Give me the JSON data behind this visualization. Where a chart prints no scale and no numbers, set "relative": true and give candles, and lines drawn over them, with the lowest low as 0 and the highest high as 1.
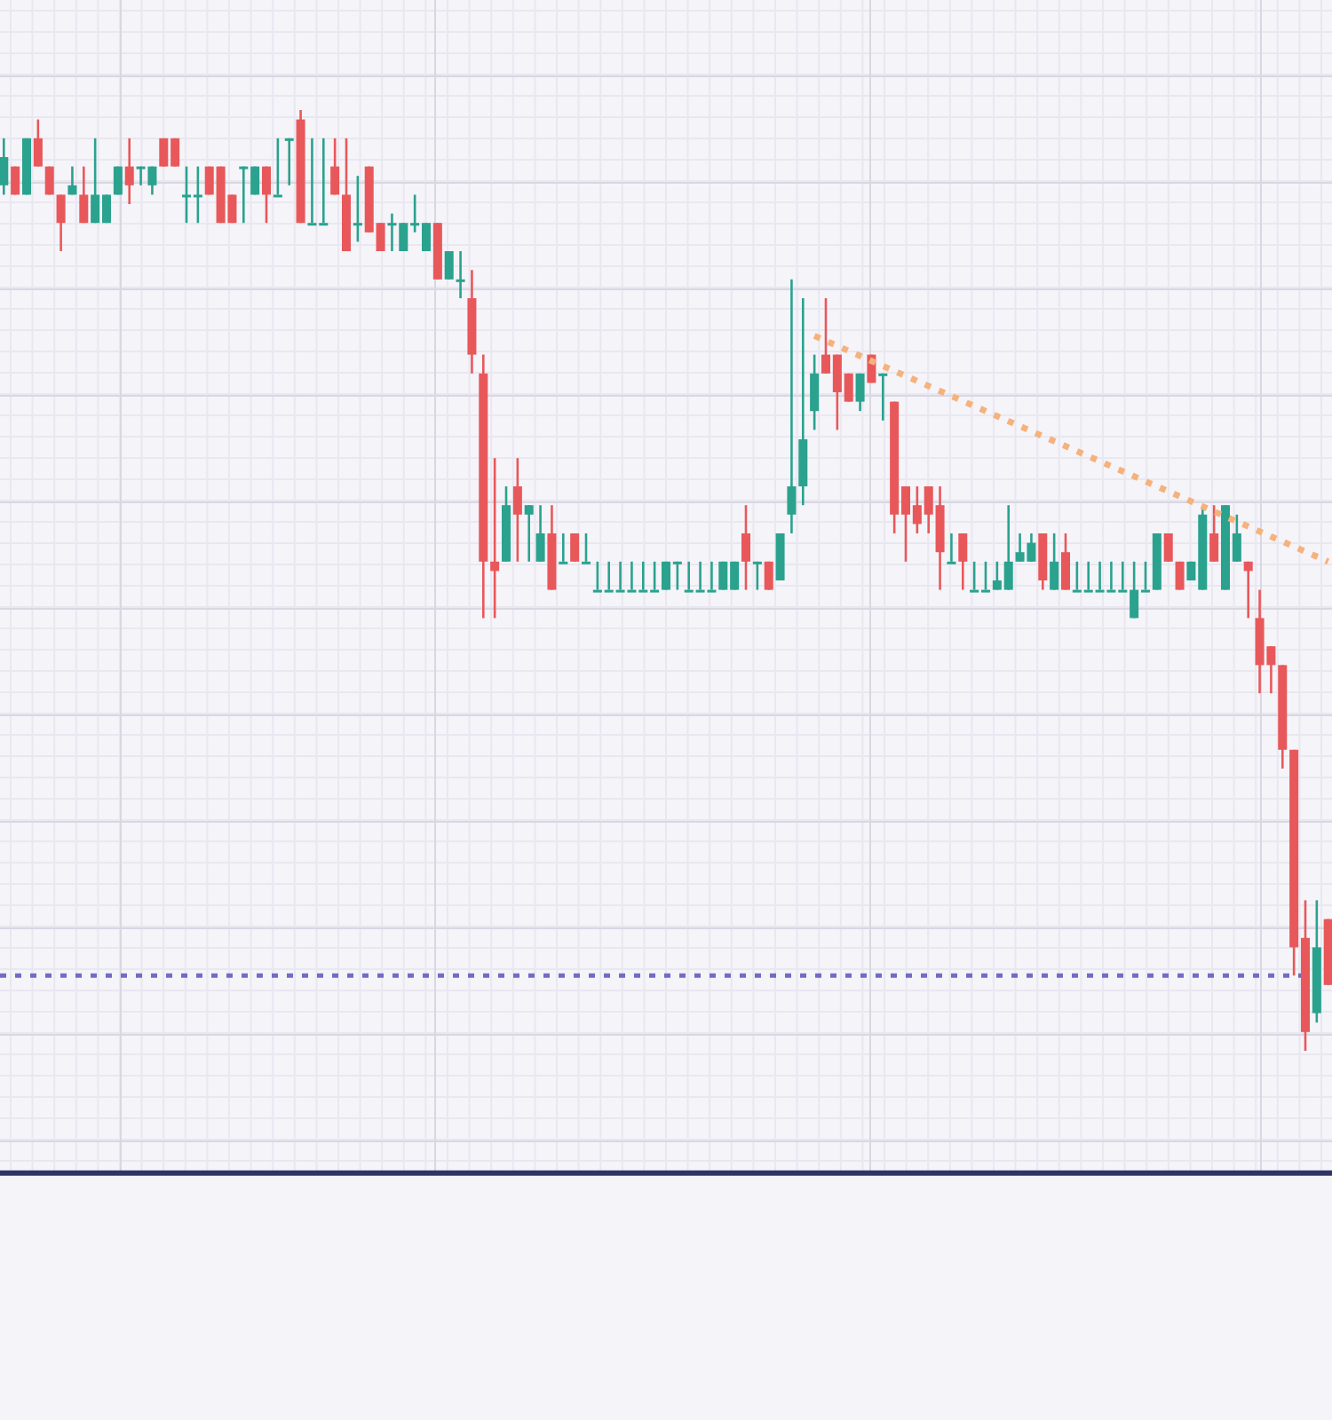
{
  "chart_data": {
    "type": "candlestick",
    "relative": true,
    "grid": true,
    "categories": [
      null,
      null,
      null,
      null,
      null,
      null,
      null,
      null,
      null,
      null,
      null,
      null,
      null,
      null,
      null,
      null,
      null,
      null,
      null,
      null,
      null,
      null,
      null,
      null,
      null,
      null,
      null,
      null,
      null,
      null,
      null,
      null,
      null,
      null,
      null,
      null,
      null,
      null,
      null,
      null,
      null,
      null,
      null,
      null,
      null,
      null,
      null,
      null,
      null,
      null,
      null,
      null,
      null,
      null,
      null,
      null,
      null,
      null,
      null,
      null,
      null,
      null,
      null,
      null,
      null,
      null,
      null,
      null,
      null,
      null,
      null,
      null,
      null,
      null,
      null,
      null,
      null,
      null,
      null,
      null,
      null,
      null,
      null,
      null,
      null,
      null,
      null,
      null,
      null,
      null,
      null,
      null,
      null,
      null,
      null,
      null,
      null,
      null,
      null,
      null,
      null,
      null,
      null,
      null,
      null,
      null,
      null,
      null,
      null,
      null,
      null,
      null,
      null,
      null,
      null,
      null,
      null
    ],
    "ohlc": [
      [
        0.92,
        0.97,
        0.91,
        0.95
      ],
      [
        0.94,
        0.94,
        0.91,
        0.91
      ],
      [
        0.91,
        0.97,
        0.91,
        0.97
      ],
      [
        0.97,
        0.99,
        0.94,
        0.94
      ],
      [
        0.94,
        0.94,
        0.91,
        0.91
      ],
      [
        0.91,
        0.91,
        0.85,
        0.88
      ],
      [
        0.91,
        0.94,
        0.91,
        0.92
      ],
      [
        0.91,
        0.94,
        0.88,
        0.88
      ],
      [
        0.88,
        0.97,
        0.88,
        0.91
      ],
      [
        0.88,
        0.91,
        0.88,
        0.91
      ],
      [
        0.91,
        0.94,
        0.91,
        0.94
      ],
      [
        0.94,
        0.97,
        0.9,
        0.92
      ],
      [
        0.94,
        0.94,
        0.92,
        0.94
      ],
      [
        0.92,
        0.94,
        0.91,
        0.94
      ],
      [
        0.97,
        0.97,
        0.94,
        0.94
      ],
      [
        0.97,
        0.97,
        0.94,
        0.94
      ],
      [
        0.91,
        0.94,
        0.88,
        0.91
      ],
      [
        0.91,
        0.94,
        0.88,
        0.91
      ],
      [
        0.94,
        0.94,
        0.91,
        0.91
      ],
      [
        0.94,
        0.94,
        0.88,
        0.88
      ],
      [
        0.91,
        0.91,
        0.88,
        0.88
      ],
      [
        0.94,
        0.94,
        0.88,
        0.94
      ],
      [
        0.91,
        0.94,
        0.91,
        0.94
      ],
      [
        0.94,
        0.94,
        0.88,
        0.91
      ],
      [
        0.91,
        0.97,
        0.91,
        0.91
      ],
      [
        0.97,
        0.97,
        0.92,
        0.97
      ],
      [
        0.99,
        1,
        0.88,
        0.88
      ],
      [
        0.88,
        0.97,
        0.88,
        0.88
      ],
      [
        0.88,
        0.97,
        0.88,
        0.88
      ],
      [
        0.94,
        0.97,
        0.91,
        0.91
      ],
      [
        0.91,
        0.97,
        0.85,
        0.85
      ],
      [
        0.88,
        0.93,
        0.86,
        0.88
      ],
      [
        0.94,
        0.94,
        0.87,
        0.87
      ],
      [
        0.88,
        0.88,
        0.85,
        0.85
      ],
      [
        0.88,
        0.89,
        0.85,
        0.88
      ],
      [
        0.85,
        0.88,
        0.85,
        0.88
      ],
      [
        0.88,
        0.91,
        0.87,
        0.88
      ],
      [
        0.85,
        0.88,
        0.85,
        0.88
      ],
      [
        0.88,
        0.88,
        0.82,
        0.82
      ],
      [
        0.82,
        0.85,
        0.82,
        0.85
      ],
      [
        0.82,
        0.85,
        0.8,
        0.82
      ],
      [
        0.8,
        0.83,
        0.72,
        0.74
      ],
      [
        0.72,
        0.74,
        0.46,
        0.52
      ],
      [
        0.52,
        0.63,
        0.46,
        0.51
      ],
      [
        0.52,
        0.6,
        0.52,
        0.58
      ],
      [
        0.6,
        0.63,
        0.52,
        0.57
      ],
      [
        0.57,
        0.58,
        0.52,
        0.58
      ],
      [
        0.52,
        0.58,
        0.52,
        0.55
      ],
      [
        0.55,
        0.58,
        0.49,
        0.49
      ],
      [
        0.52,
        0.55,
        0.52,
        0.52
      ],
      [
        0.55,
        0.55,
        0.52,
        0.52
      ],
      [
        0.52,
        0.55,
        0.52,
        0.52
      ],
      [
        0.49,
        0.52,
        0.49,
        0.49
      ],
      [
        0.49,
        0.52,
        0.49,
        0.49
      ],
      [
        0.49,
        0.52,
        0.49,
        0.49
      ],
      [
        0.49,
        0.52,
        0.49,
        0.49
      ],
      [
        0.49,
        0.52,
        0.49,
        0.49
      ],
      [
        0.49,
        0.52,
        0.49,
        0.49
      ],
      [
        0.49,
        0.52,
        0.49,
        0.52
      ],
      [
        0.52,
        0.52,
        0.49,
        0.52
      ],
      [
        0.49,
        0.52,
        0.49,
        0.49
      ],
      [
        0.49,
        0.52,
        0.49,
        0.49
      ],
      [
        0.49,
        0.52,
        0.49,
        0.49
      ],
      [
        0.49,
        0.52,
        0.49,
        0.52
      ],
      [
        0.49,
        0.52,
        0.49,
        0.52
      ],
      [
        0.55,
        0.58,
        0.49,
        0.52
      ],
      [
        0.52,
        0.52,
        0.49,
        0.52
      ],
      [
        0.52,
        0.52,
        0.49,
        0.49
      ],
      [
        0.5,
        0.55,
        0.5,
        0.55
      ],
      [
        0.57,
        0.82,
        0.55,
        0.6
      ],
      [
        0.6,
        0.8,
        0.58,
        0.65
      ],
      [
        0.68,
        0.74,
        0.66,
        0.72
      ],
      [
        0.74,
        0.8,
        0.72,
        0.72
      ],
      [
        0.74,
        0.74,
        0.66,
        0.7
      ],
      [
        0.72,
        0.72,
        0.69,
        0.69
      ],
      [
        0.69,
        0.72,
        0.68,
        0.72
      ],
      [
        0.74,
        0.74,
        0.71,
        0.71
      ],
      [
        0.72,
        0.72,
        0.67,
        0.72
      ],
      [
        0.69,
        0.69,
        0.55,
        0.57
      ],
      [
        0.6,
        0.6,
        0.52,
        0.57
      ],
      [
        0.58,
        0.6,
        0.55,
        0.56
      ],
      [
        0.6,
        0.6,
        0.55,
        0.57
      ],
      [
        0.58,
        0.6,
        0.49,
        0.53
      ],
      [
        0.52,
        0.55,
        0.52,
        0.52
      ],
      [
        0.55,
        0.55,
        0.49,
        0.52
      ],
      [
        0.49,
        0.52,
        0.49,
        0.49
      ],
      [
        0.49,
        0.52,
        0.49,
        0.49
      ],
      [
        0.49,
        0.52,
        0.49,
        0.5
      ],
      [
        0.49,
        0.58,
        0.49,
        0.52
      ],
      [
        0.52,
        0.55,
        0.52,
        0.53
      ],
      [
        0.52,
        0.55,
        0.52,
        0.54
      ],
      [
        0.55,
        0.55,
        0.49,
        0.5
      ],
      [
        0.49,
        0.55,
        0.49,
        0.52
      ],
      [
        0.53,
        0.55,
        0.49,
        0.49
      ],
      [
        0.49,
        0.52,
        0.49,
        0.49
      ],
      [
        0.49,
        0.52,
        0.49,
        0.49
      ],
      [
        0.49,
        0.52,
        0.49,
        0.49
      ],
      [
        0.49,
        0.52,
        0.49,
        0.49
      ],
      [
        0.49,
        0.52,
        0.49,
        0.49
      ],
      [
        0.46,
        0.52,
        0.46,
        0.49
      ],
      [
        0.49,
        0.52,
        0.49,
        0.49
      ],
      [
        0.49,
        0.55,
        0.49,
        0.55
      ],
      [
        0.55,
        0.55,
        0.52,
        0.52
      ],
      [
        0.52,
        0.52,
        0.49,
        0.49
      ],
      [
        0.5,
        0.52,
        0.5,
        0.52
      ],
      [
        0.49,
        0.58,
        0.49,
        0.57
      ],
      [
        0.55,
        0.58,
        0.52,
        0.52
      ],
      [
        0.49,
        0.58,
        0.49,
        0.58
      ],
      [
        0.52,
        0.57,
        0.52,
        0.55
      ],
      [
        0.52,
        0.52,
        0.46,
        0.51
      ],
      [
        0.46,
        0.49,
        0.38,
        0.41
      ],
      [
        0.43,
        0.43,
        0.38,
        0.41
      ],
      [
        0.41,
        0.41,
        0.3,
        0.32
      ],
      [
        0.32,
        0.32,
        0.08,
        0.11
      ],
      [
        0.12,
        0.16,
        0,
        0.02
      ],
      [
        0.04,
        0.16,
        0.03,
        0.11
      ],
      [
        0.14,
        0.14,
        0.07,
        0.07
      ]
    ],
    "colors": [
      "#2aa28e",
      "#e8585a",
      "#2aa28e",
      "#e8585a",
      "#e8585a",
      "#e8585a",
      "#2aa28e",
      "#e8585a",
      "#2aa28e",
      "#2aa28e",
      "#2aa28e",
      "#e8585a",
      "#2aa28e",
      "#2aa28e",
      "#e8585a",
      "#e8585a",
      "#2aa28e",
      "#2aa28e",
      "#e8585a",
      "#e8585a",
      "#e8585a",
      "#2aa28e",
      "#2aa28e",
      "#e8585a",
      "#2aa28e",
      "#2aa28e",
      "#e8585a",
      "#2aa28e",
      "#2aa28e",
      "#e8585a",
      "#e8585a",
      "#2aa28e",
      "#e8585a",
      "#e8585a",
      "#2aa28e",
      "#2aa28e",
      "#2aa28e",
      "#2aa28e",
      "#e8585a",
      "#2aa28e",
      "#2aa28e",
      "#e8585a",
      "#e8585a",
      "#e8585a",
      "#2aa28e",
      "#e8585a",
      "#2aa28e",
      "#2aa28e",
      "#e8585a",
      "#2aa28e",
      "#e8585a",
      "#2aa28e",
      "#2aa28e",
      "#2aa28e",
      "#2aa28e",
      "#2aa28e",
      "#2aa28e",
      "#2aa28e",
      "#2aa28e",
      "#2aa28e",
      "#2aa28e",
      "#2aa28e",
      "#2aa28e",
      "#2aa28e",
      "#2aa28e",
      "#e8585a",
      "#2aa28e",
      "#e8585a",
      "#2aa28e",
      "#2aa28e",
      "#2aa28e",
      "#2aa28e",
      "#e8585a",
      "#e8585a",
      "#e8585a",
      "#2aa28e",
      "#e8585a",
      "#2aa28e",
      "#e8585a",
      "#e8585a",
      "#e8585a",
      "#e8585a",
      "#e8585a",
      "#2aa28e",
      "#e8585a",
      "#2aa28e",
      "#2aa28e",
      "#2aa28e",
      "#2aa28e",
      "#2aa28e",
      "#2aa28e",
      "#e8585a",
      "#2aa28e",
      "#e8585a",
      "#2aa28e",
      "#2aa28e",
      "#2aa28e",
      "#2aa28e",
      "#2aa28e",
      "#2aa28e",
      "#2aa28e",
      "#2aa28e",
      "#e8585a",
      "#e8585a",
      "#2aa28e",
      "#2aa28e",
      "#e8585a",
      "#2aa28e",
      "#2aa28e",
      "#e8585a",
      "#e8585a",
      "#e8585a",
      "#e8585a",
      "#e8585a",
      "#e8585a",
      "#2aa28e",
      "#e8585a"
    ],
    "series": [
      {
        "type": "line",
        "color": "#f5b27c",
        "line_style": "dotted",
        "values": [
          null,
          null,
          null,
          null,
          null,
          null,
          null,
          null,
          null,
          null,
          null,
          null,
          null,
          null,
          null,
          null,
          null,
          null,
          null,
          null,
          null,
          null,
          null,
          null,
          null,
          null,
          null,
          null,
          null,
          null,
          null,
          null,
          null,
          null,
          null,
          null,
          null,
          null,
          null,
          null,
          null,
          null,
          null,
          null,
          null,
          null,
          null,
          null,
          null,
          null,
          null,
          null,
          null,
          null,
          null,
          null,
          null,
          null,
          null,
          null,
          null,
          null,
          null,
          null,
          null,
          null,
          null,
          null,
          null,
          null,
          null,
          0.76,
          null,
          null,
          null,
          null,
          null,
          null,
          null,
          null,
          null,
          null,
          null,
          null,
          null,
          null,
          null,
          null,
          null,
          null,
          null,
          null,
          null,
          null,
          null,
          null,
          null,
          null,
          null,
          null,
          null,
          null,
          null,
          null,
          null,
          null,
          null,
          null,
          null,
          null,
          null,
          null,
          null,
          null,
          null,
          null,
          0.52
        ]
      }
    ],
    "ref_lines": [
      {
        "axis": "y",
        "value": 0.08,
        "color": "#6f6cc6",
        "line_style": "dotted"
      },
      {
        "axis": "y",
        "value": -0.13,
        "color": "#2f3466",
        "line_style": "solid"
      }
    ]
  }
}
